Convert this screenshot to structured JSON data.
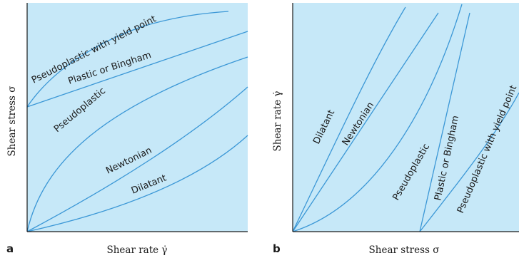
{
  "chart_data": [
    {
      "panel": "a",
      "type": "line",
      "xlabel": "Shear rate γ̇",
      "ylabel": "Shear stress σ",
      "series": [
        {
          "name": "Pseudoplastic with yield point"
        },
        {
          "name": "Plastic or Bingham"
        },
        {
          "name": "Pseudoplastic"
        },
        {
          "name": "Newtonian"
        },
        {
          "name": "Dilatant"
        }
      ]
    },
    {
      "panel": "b",
      "type": "line",
      "xlabel": "Shear stress σ",
      "ylabel": "Shear rate γ̇",
      "series": [
        {
          "name": "Dilatant"
        },
        {
          "name": "Newtonian"
        },
        {
          "name": "Pseudoplastic"
        },
        {
          "name": "Plastic or Bingham"
        },
        {
          "name": "Pseudoplastic with yield point"
        }
      ]
    }
  ],
  "colors": {
    "curve": "#3b97d6",
    "plot_background": "#c6e8f8",
    "axis": "#1a1a1a"
  }
}
